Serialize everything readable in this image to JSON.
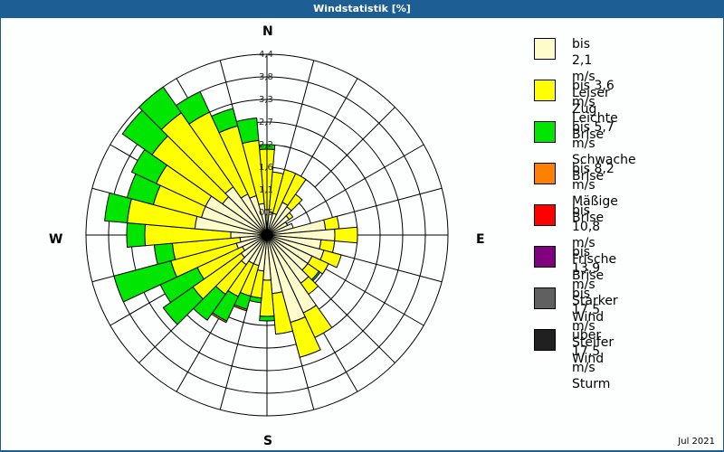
{
  "window": {
    "title": "Windstatistik [%]"
  },
  "compass": {
    "n": "N",
    "e": "E",
    "s": "S",
    "w": "W"
  },
  "footer": {
    "date": "Jul 2021"
  },
  "legend": [
    {
      "range": "bis 2,1 m/s",
      "name": "Leiser Zug",
      "color": "#fffccc"
    },
    {
      "range": "bis 3,6 m/s",
      "name": "Leichte Brise",
      "color": "#ffff00"
    },
    {
      "range": "bis 5,7 m/s",
      "name": "Schwache Brise",
      "color": "#00e600"
    },
    {
      "range": "bis 8,2 m/s",
      "name": "Mäßige Brise",
      "color": "#ff8000"
    },
    {
      "range": "bis 10,8 m/s",
      "name": "Frische Brise",
      "color": "#ff0000"
    },
    {
      "range": "bis 13,9 m/s",
      "name": "Starker Wind",
      "color": "#800080"
    },
    {
      "range": "bis 17,5 m/s",
      "name": "Steifer Wind",
      "color": "#606060"
    },
    {
      "range": "über 17,5 m/s",
      "name": "Sturm",
      "color": "#202020"
    }
  ],
  "chart_data": {
    "type": "polar-stacked-bar",
    "title": "Windstatistik [%]",
    "subtitle": "Jul 2021",
    "radial_ticks": [
      "0,5",
      "1,1",
      "1,6",
      "2,2",
      "2,7",
      "3,3",
      "3,8",
      "4,4"
    ],
    "radial_max": 4.4,
    "sector_width_deg": 10,
    "directions_deg": [
      0,
      10,
      20,
      30,
      40,
      50,
      60,
      70,
      80,
      90,
      100,
      110,
      120,
      130,
      140,
      150,
      160,
      170,
      180,
      190,
      200,
      210,
      220,
      230,
      240,
      250,
      260,
      270,
      280,
      290,
      300,
      310,
      320,
      330,
      340,
      350
    ],
    "series": [
      {
        "name": "bis 2,1 m/s Leiser Zug",
        "values": [
          0.62,
          0.55,
          0.55,
          0.88,
          0.84,
          0.66,
          0.55,
          0.66,
          1.43,
          1.65,
          1.32,
          1.43,
          1.21,
          1.21,
          1.43,
          2.09,
          2.2,
          1.43,
          1.1,
          0.88,
          0.77,
          0.77,
          0.88,
          0.77,
          0.66,
          0.77,
          0.66,
          0.88,
          1.76,
          1.65,
          1.65,
          1.32,
          1.43,
          1.1,
          0.99,
          0.77
        ]
      },
      {
        "name": "bis 3,6 m/s Leichte Brise",
        "values": [
          1.47,
          0.99,
          1.1,
          0.77,
          0.37,
          0.11,
          0,
          0,
          0.33,
          0.55,
          0.33,
          0.44,
          0.44,
          0.33,
          0.33,
          0.66,
          0.88,
          0.99,
          0.88,
          0.66,
          0.77,
          0.88,
          0.88,
          1.43,
          1.21,
          1.65,
          1.65,
          2.09,
          1.65,
          1.21,
          1.32,
          2.09,
          2.2,
          2.2,
          1.76,
          1.54
        ]
      },
      {
        "name": "bis 5,7 m/s Schwache Brise",
        "values": [
          0.11,
          0,
          0,
          0,
          0,
          0,
          0,
          0,
          0,
          0,
          0,
          0,
          0,
          0.04,
          0,
          0,
          0,
          0,
          0.11,
          0.11,
          0.33,
          0.66,
          0.77,
          0.88,
          0.99,
          1.43,
          0.44,
          0.44,
          0.55,
          0.66,
          0.66,
          0.88,
          0.77,
          0.55,
          0.44,
          0.55
        ]
      },
      {
        "name": "bis 8,2 m/s Mäßige Brise",
        "values": [
          0,
          0,
          0,
          0,
          0,
          0,
          0,
          0,
          0,
          0,
          0,
          0,
          0,
          0,
          0,
          0,
          0,
          0,
          0,
          0,
          0.04,
          0.04,
          0,
          0,
          0,
          0,
          0,
          0,
          0,
          0,
          0,
          0,
          0,
          0,
          0,
          0
        ]
      },
      {
        "name": "bis 10,8 m/s Frische Brise",
        "values": [
          0,
          0,
          0,
          0,
          0,
          0,
          0,
          0,
          0,
          0,
          0,
          0,
          0,
          0,
          0,
          0,
          0,
          0,
          0,
          0,
          0,
          0,
          0,
          0,
          0,
          0,
          0,
          0,
          0,
          0,
          0,
          0,
          0,
          0,
          0,
          0
        ]
      },
      {
        "name": "bis 13,9 m/s Starker Wind",
        "values": [
          0,
          0,
          0,
          0,
          0,
          0,
          0,
          0,
          0,
          0,
          0,
          0,
          0,
          0,
          0,
          0,
          0,
          0,
          0,
          0,
          0,
          0,
          0,
          0,
          0,
          0,
          0,
          0,
          0,
          0,
          0,
          0,
          0,
          0,
          0,
          0
        ]
      },
      {
        "name": "bis 17,5 m/s Steifer Wind",
        "values": [
          0,
          0,
          0,
          0,
          0,
          0,
          0,
          0,
          0,
          0,
          0,
          0,
          0,
          0,
          0,
          0,
          0,
          0,
          0,
          0,
          0,
          0,
          0,
          0,
          0,
          0,
          0,
          0,
          0,
          0,
          0,
          0,
          0,
          0,
          0,
          0
        ]
      },
      {
        "name": "über 17,5 m/s Sturm",
        "values": [
          0,
          0,
          0,
          0,
          0,
          0,
          0,
          0,
          0,
          0,
          0,
          0,
          0,
          0,
          0,
          0,
          0,
          0,
          0,
          0,
          0,
          0,
          0,
          0,
          0,
          0,
          0,
          0,
          0,
          0,
          0,
          0,
          0,
          0,
          0,
          0
        ]
      }
    ],
    "legend_position": "right",
    "grid": true
  }
}
